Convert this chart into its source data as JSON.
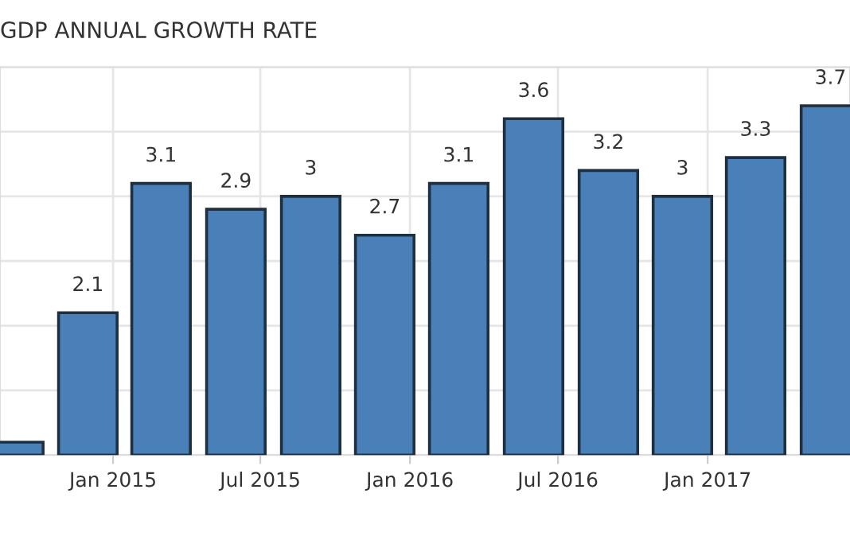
{
  "chart_data": {
    "type": "bar",
    "title": "GDP ANNUAL GROWTH RATE",
    "x": [
      "2014-09",
      "2014-12",
      "2015-03",
      "2015-06",
      "2015-09",
      "2015-12",
      "2016-03",
      "2016-06",
      "2016-09",
      "2016-12",
      "2017-03",
      "2017-06"
    ],
    "values": [
      1.1,
      2.1,
      3.1,
      2.9,
      3,
      2.7,
      3.1,
      3.6,
      3.2,
      3,
      3.3,
      3.7
    ],
    "value_labels": [
      null,
      "2.1",
      "3.1",
      "2.9",
      "3",
      "2.7",
      "3.1",
      "3.6",
      "3.2",
      "3",
      "3.3",
      "3.7"
    ],
    "color": "#4a80b8",
    "xlim": [
      "2014-08-15",
      "2017-06-25"
    ],
    "xticks": [
      {
        "value": "2015-01",
        "label": "Jan 2015"
      },
      {
        "value": "2015-07",
        "label": "Jul 2015"
      },
      {
        "value": "2016-01",
        "label": "Jan 2016"
      },
      {
        "value": "2016-07",
        "label": "Jul 2016"
      },
      {
        "value": "2017-01",
        "label": "Jan 2017"
      }
    ],
    "ylim": [
      1,
      4
    ],
    "yticks": [
      {
        "value": 1,
        "label": null
      },
      {
        "value": 1.5,
        "label": null
      },
      {
        "value": 2,
        "label": null
      },
      {
        "value": 2.5,
        "label": null
      },
      {
        "value": 3,
        "label": null
      },
      {
        "value": 3.5,
        "label": null
      },
      {
        "value": 4,
        "label": null
      }
    ],
    "tick_labels": "x",
    "grid": true
  }
}
